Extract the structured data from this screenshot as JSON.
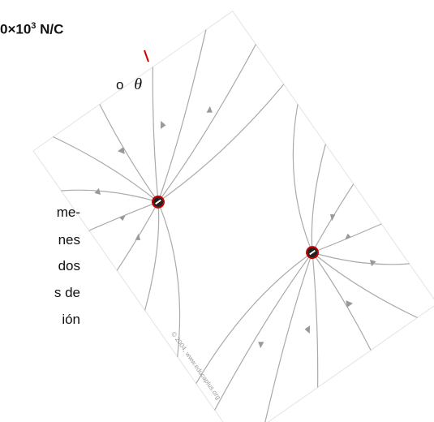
{
  "header": {
    "base": "0×10",
    "exponent": "3",
    "unit": "N/C"
  },
  "line2": {
    "text": "o",
    "symbol": "θ"
  },
  "paragraph_fragments": [
    "me-",
    "nes",
    "dos",
    "s de",
    "ión"
  ],
  "figure": {
    "credit": "© 2004, www.educaplus.org"
  }
}
